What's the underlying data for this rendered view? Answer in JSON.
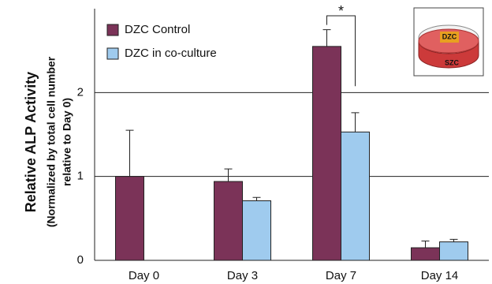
{
  "chart_data": {
    "type": "bar",
    "y_label": [
      "Relative ALP Activity",
      "(Normalized by total cell number",
      "relative to Day 0)"
    ],
    "categories": [
      "Day 0",
      "Day 3",
      "Day 7",
      "Day 14"
    ],
    "series": [
      {
        "name": "DZC Control",
        "color": "#7b3358",
        "values": [
          1.0,
          0.94,
          2.55,
          0.15
        ],
        "errors": [
          0.55,
          0.15,
          0.2,
          0.08
        ]
      },
      {
        "name": "DZC in co-culture",
        "color": "#9fcbee",
        "values": [
          null,
          0.71,
          1.53,
          0.22
        ],
        "errors": [
          null,
          0.04,
          0.23,
          0.03
        ]
      }
    ],
    "ylim": [
      0,
      3
    ],
    "yticks": [
      0,
      1,
      2
    ],
    "grid": true,
    "annotations": [
      "*"
    ],
    "inset_labels": [
      "DZC",
      "SZC"
    ]
  }
}
